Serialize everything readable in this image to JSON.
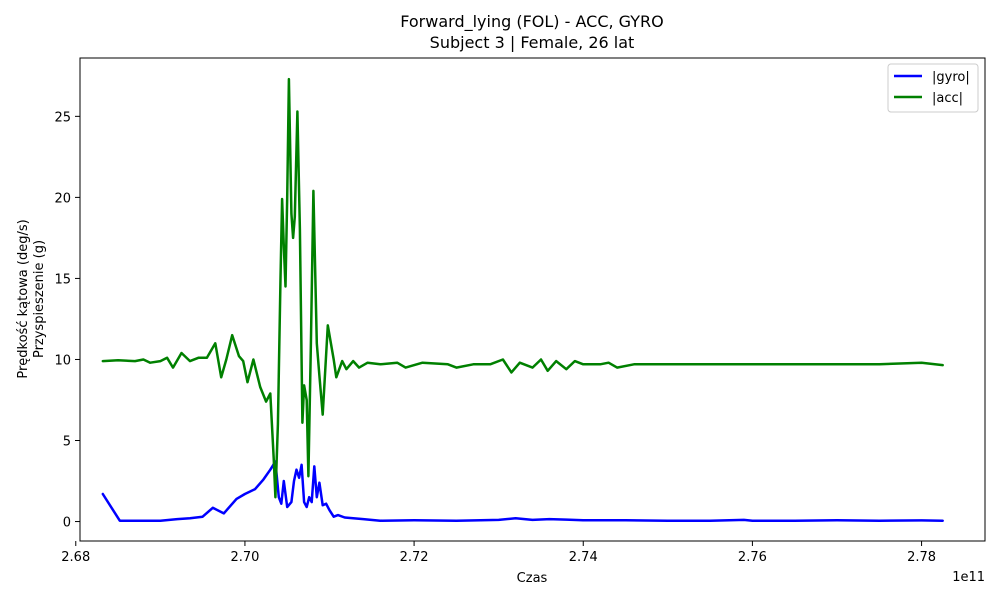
{
  "chart_data": {
    "type": "line",
    "title": "Forward_lying (FOL) - ACC, GYRO",
    "subtitle": "Subject 3 | Female, 26 lat",
    "xlabel": "Czas",
    "ylabel_line1": "Prędkość kątowa (deg/s)",
    "ylabel_line2": "Przyspieszenie (g)",
    "x_offset_label": "1e11",
    "xlim": [
      2.6805,
      2.7875
    ],
    "ylim": [
      -1.2,
      28.6
    ],
    "x_ticks": [
      2.68,
      2.7,
      2.72,
      2.74,
      2.76,
      2.78
    ],
    "x_tick_labels": [
      "2.68",
      "2.70",
      "2.72",
      "2.74",
      "2.76",
      "2.78"
    ],
    "y_ticks": [
      0,
      5,
      10,
      15,
      20,
      25
    ],
    "y_tick_labels": [
      "0",
      "5",
      "10",
      "15",
      "20",
      "25"
    ],
    "grid": false,
    "legend_position": "top-right",
    "series": [
      {
        "name": "|gyro|",
        "color": "#0000ff",
        "points": [
          [
            2.6832,
            1.7
          ],
          [
            2.6852,
            0.05
          ],
          [
            2.688,
            0.05
          ],
          [
            2.69,
            0.05
          ],
          [
            2.692,
            0.15
          ],
          [
            2.6935,
            0.2
          ],
          [
            2.695,
            0.3
          ],
          [
            2.6962,
            0.85
          ],
          [
            2.6975,
            0.5
          ],
          [
            2.699,
            1.4
          ],
          [
            2.7,
            1.7
          ],
          [
            2.7012,
            2.0
          ],
          [
            2.7022,
            2.6
          ],
          [
            2.703,
            3.2
          ],
          [
            2.7036,
            3.7
          ],
          [
            2.704,
            1.5
          ],
          [
            2.7043,
            1.1
          ],
          [
            2.7046,
            2.5
          ],
          [
            2.705,
            0.9
          ],
          [
            2.7055,
            1.2
          ],
          [
            2.7058,
            2.5
          ],
          [
            2.7061,
            3.2
          ],
          [
            2.7064,
            2.7
          ],
          [
            2.7067,
            3.5
          ],
          [
            2.707,
            1.2
          ],
          [
            2.7073,
            0.9
          ],
          [
            2.7076,
            1.5
          ],
          [
            2.7079,
            1.2
          ],
          [
            2.7082,
            3.4
          ],
          [
            2.7085,
            1.5
          ],
          [
            2.7088,
            2.4
          ],
          [
            2.7092,
            1.0
          ],
          [
            2.7096,
            1.1
          ],
          [
            2.71,
            0.7
          ],
          [
            2.7105,
            0.3
          ],
          [
            2.711,
            0.4
          ],
          [
            2.7118,
            0.25
          ],
          [
            2.7128,
            0.2
          ],
          [
            2.714,
            0.15
          ],
          [
            2.716,
            0.05
          ],
          [
            2.72,
            0.08
          ],
          [
            2.725,
            0.05
          ],
          [
            2.73,
            0.1
          ],
          [
            2.732,
            0.2
          ],
          [
            2.734,
            0.1
          ],
          [
            2.736,
            0.15
          ],
          [
            2.738,
            0.12
          ],
          [
            2.74,
            0.08
          ],
          [
            2.745,
            0.08
          ],
          [
            2.75,
            0.05
          ],
          [
            2.755,
            0.05
          ],
          [
            2.759,
            0.1
          ],
          [
            2.76,
            0.05
          ],
          [
            2.765,
            0.05
          ],
          [
            2.77,
            0.08
          ],
          [
            2.775,
            0.05
          ],
          [
            2.78,
            0.07
          ],
          [
            2.7825,
            0.05
          ]
        ]
      },
      {
        "name": "|acc|",
        "color": "#008000",
        "points": [
          [
            2.6832,
            9.9
          ],
          [
            2.685,
            9.95
          ],
          [
            2.687,
            9.9
          ],
          [
            2.688,
            10.0
          ],
          [
            2.6888,
            9.8
          ],
          [
            2.69,
            9.9
          ],
          [
            2.6908,
            10.1
          ],
          [
            2.6915,
            9.5
          ],
          [
            2.6925,
            10.4
          ],
          [
            2.6935,
            9.9
          ],
          [
            2.6945,
            10.1
          ],
          [
            2.6955,
            10.1
          ],
          [
            2.6965,
            11.0
          ],
          [
            2.6972,
            8.9
          ],
          [
            2.6978,
            10.0
          ],
          [
            2.6985,
            11.5
          ],
          [
            2.6993,
            10.2
          ],
          [
            2.6998,
            9.9
          ],
          [
            2.7003,
            8.6
          ],
          [
            2.701,
            10.0
          ],
          [
            2.7018,
            8.3
          ],
          [
            2.7025,
            7.4
          ],
          [
            2.703,
            7.9
          ],
          [
            2.7034,
            3.9
          ],
          [
            2.7036,
            1.5
          ],
          [
            2.7039,
            6.0
          ],
          [
            2.7042,
            15.0
          ],
          [
            2.7044,
            19.9
          ],
          [
            2.7046,
            17.0
          ],
          [
            2.7048,
            14.5
          ],
          [
            2.705,
            20.0
          ],
          [
            2.7052,
            27.3
          ],
          [
            2.7055,
            19.0
          ],
          [
            2.7057,
            17.5
          ],
          [
            2.7059,
            18.8
          ],
          [
            2.7062,
            25.3
          ],
          [
            2.7065,
            18.0
          ],
          [
            2.7068,
            6.1
          ],
          [
            2.707,
            8.4
          ],
          [
            2.7073,
            7.5
          ],
          [
            2.7075,
            2.8
          ],
          [
            2.7078,
            11.0
          ],
          [
            2.7081,
            20.4
          ],
          [
            2.7085,
            11.0
          ],
          [
            2.7088,
            9.0
          ],
          [
            2.7092,
            6.6
          ],
          [
            2.7098,
            12.1
          ],
          [
            2.7105,
            10.0
          ],
          [
            2.7108,
            8.9
          ],
          [
            2.7115,
            9.9
          ],
          [
            2.712,
            9.4
          ],
          [
            2.7128,
            9.9
          ],
          [
            2.7135,
            9.5
          ],
          [
            2.7145,
            9.8
          ],
          [
            2.716,
            9.7
          ],
          [
            2.718,
            9.8
          ],
          [
            2.719,
            9.5
          ],
          [
            2.721,
            9.8
          ],
          [
            2.724,
            9.7
          ],
          [
            2.725,
            9.5
          ],
          [
            2.727,
            9.7
          ],
          [
            2.729,
            9.7
          ],
          [
            2.7305,
            10.0
          ],
          [
            2.7315,
            9.2
          ],
          [
            2.7325,
            9.8
          ],
          [
            2.734,
            9.5
          ],
          [
            2.735,
            10.0
          ],
          [
            2.7358,
            9.3
          ],
          [
            2.7368,
            9.9
          ],
          [
            2.738,
            9.4
          ],
          [
            2.739,
            9.9
          ],
          [
            2.74,
            9.7
          ],
          [
            2.742,
            9.7
          ],
          [
            2.743,
            9.8
          ],
          [
            2.744,
            9.5
          ],
          [
            2.746,
            9.7
          ],
          [
            2.75,
            9.7
          ],
          [
            2.755,
            9.7
          ],
          [
            2.76,
            9.7
          ],
          [
            2.765,
            9.7
          ],
          [
            2.77,
            9.7
          ],
          [
            2.775,
            9.7
          ],
          [
            2.78,
            9.8
          ],
          [
            2.7825,
            9.65
          ]
        ]
      }
    ]
  }
}
